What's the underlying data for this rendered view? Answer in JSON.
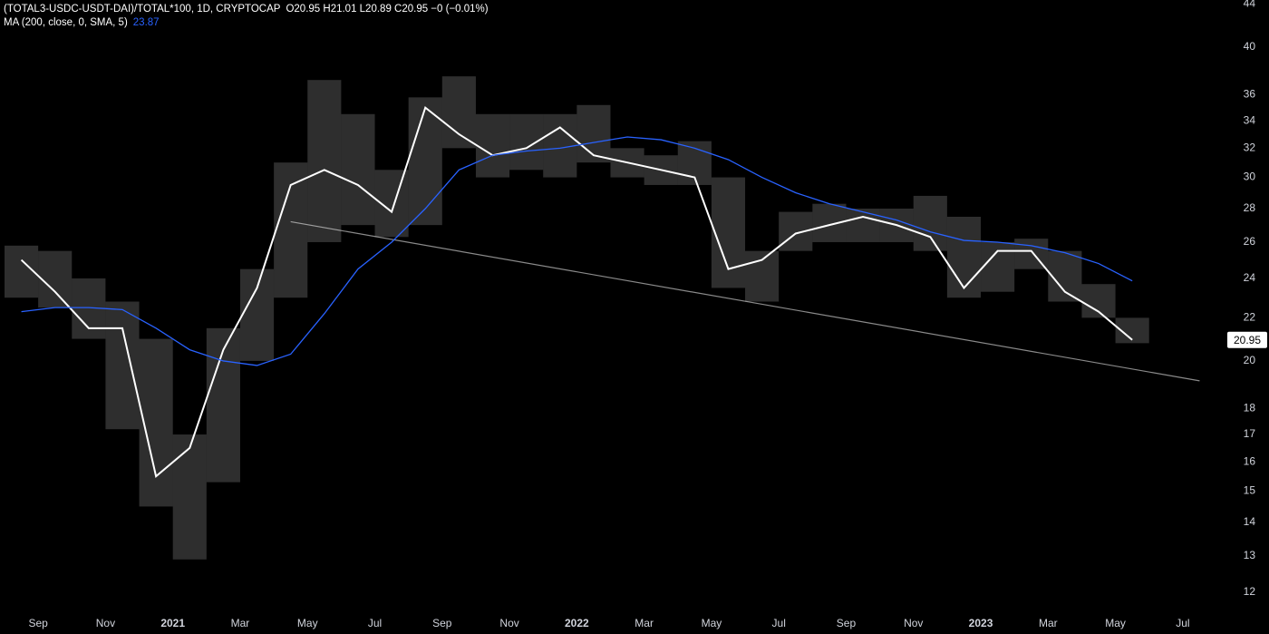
{
  "chart_data": {
    "type": "range-line",
    "title": "(TOTAL3-USDC-USDT-DAI)/TOTAL*100, 1D, CRYPTOCAP",
    "subtitle": "O20.95  H21.01  L20.89  C20.95  −0 (−0.01%)",
    "log_scale": true,
    "grid": false,
    "x": [
      "2020-08",
      "2020-09",
      "2020-10",
      "2020-11",
      "2020-12",
      "2021-01",
      "2021-02",
      "2021-03",
      "2021-04",
      "2021-05",
      "2021-06",
      "2021-07",
      "2021-08",
      "2021-09",
      "2021-10",
      "2021-11",
      "2021-12",
      "2022-01",
      "2022-02",
      "2022-03",
      "2022-04",
      "2022-05",
      "2022-06",
      "2022-07",
      "2022-08",
      "2022-09",
      "2022-10",
      "2022-11",
      "2022-12",
      "2023-01",
      "2023-02",
      "2023-03",
      "2023-04",
      "2023-05"
    ],
    "series": [
      {
        "name": "(TOTAL3-USDC-USDT-DAI)/TOTAL*100",
        "color": "#ffffff",
        "values": [
          25,
          23.3,
          21.5,
          21.5,
          15.5,
          16.5,
          20.5,
          23.5,
          29.5,
          30.5,
          29.5,
          27.8,
          35,
          33,
          31.5,
          32,
          33.5,
          31.5,
          31,
          30.5,
          30,
          24.5,
          25,
          26.5,
          27,
          27.5,
          27,
          26.3,
          23.5,
          25.5,
          25.5,
          23.3,
          22.3,
          20.95
        ],
        "high": [
          25.8,
          25.5,
          24,
          22.8,
          21,
          17,
          21.5,
          24.5,
          31,
          37.2,
          34.5,
          30.5,
          35.8,
          37.5,
          34.5,
          34.5,
          34.5,
          35.2,
          32,
          31.5,
          32.5,
          30,
          25.5,
          27.8,
          28.3,
          28,
          28,
          28.8,
          27.5,
          26,
          26.2,
          25.5,
          23.7,
          22
        ],
        "low": [
          23,
          22.5,
          21,
          17.2,
          14.5,
          12.9,
          15.3,
          20,
          23,
          26,
          27,
          26.3,
          27,
          32,
          30,
          30.5,
          30,
          31,
          30,
          29.5,
          29.5,
          23.5,
          22.8,
          25.5,
          26,
          26,
          26,
          25.5,
          23,
          23.3,
          24.5,
          22.8,
          22,
          20.8
        ]
      },
      {
        "name": "MA (200, close, 0, SMA, 5)",
        "color": "#2962ff",
        "values": [
          22.3,
          22.5,
          22.5,
          22.4,
          21.5,
          20.5,
          20.0,
          19.8,
          20.3,
          22.2,
          24.5,
          26,
          28,
          30.5,
          31.5,
          31.8,
          32.0,
          32.4,
          32.8,
          32.6,
          32,
          31.2,
          30,
          29,
          28.3,
          27.8,
          27.3,
          26.6,
          26.1,
          26.0,
          25.8,
          25.4,
          24.8,
          23.87
        ]
      }
    ],
    "trendline": {
      "x": [
        "2021-04",
        "2023-07"
      ],
      "values": [
        27.2,
        19.14
      ],
      "color": "#8a8a8a"
    },
    "xlim": [
      "2020-08",
      "2023-08"
    ],
    "xticks": [
      {
        "value": "2020-09",
        "label": "Sep"
      },
      {
        "value": "2020-11",
        "label": "Nov"
      },
      {
        "value": "2021-01",
        "label": "2021"
      },
      {
        "value": "2021-03",
        "label": "Mar"
      },
      {
        "value": "2021-05",
        "label": "May"
      },
      {
        "value": "2021-07",
        "label": "Jul"
      },
      {
        "value": "2021-09",
        "label": "Sep"
      },
      {
        "value": "2021-11",
        "label": "Nov"
      },
      {
        "value": "2022-01",
        "label": "2022"
      },
      {
        "value": "2022-03",
        "label": "Mar"
      },
      {
        "value": "2022-05",
        "label": "May"
      },
      {
        "value": "2022-07",
        "label": "Jul"
      },
      {
        "value": "2022-09",
        "label": "Sep"
      },
      {
        "value": "2022-11",
        "label": "Nov"
      },
      {
        "value": "2023-01",
        "label": "2023"
      },
      {
        "value": "2023-03",
        "label": "Mar"
      },
      {
        "value": "2023-05",
        "label": "May"
      },
      {
        "value": "2023-07",
        "label": "Jul"
      }
    ],
    "ylim": [
      11.48,
      44.39
    ],
    "yticks": [
      12,
      13,
      14,
      15,
      16,
      17,
      18,
      20,
      22,
      24,
      26,
      28,
      30,
      32,
      34,
      36,
      40,
      44
    ]
  }
}
